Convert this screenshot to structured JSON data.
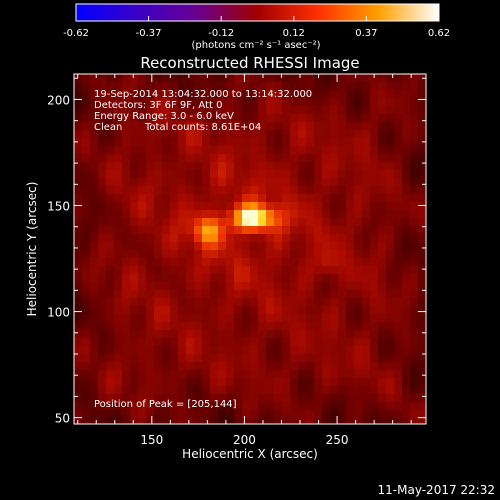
{
  "colorbar": {
    "ticks": [
      "-0.62",
      "-0.37",
      "-0.12",
      "0.12",
      "0.37",
      "0.62"
    ],
    "unit": "(photons cm⁻² s⁻¹ asec⁻²)",
    "range": [
      -0.62,
      0.62
    ],
    "colormap": [
      "#0000ff",
      "#3a00c8",
      "#6a0090",
      "#a00000",
      "#ff3000",
      "#ffa000",
      "#ffffff"
    ]
  },
  "chart_data": {
    "type": "heatmap",
    "title": "Reconstructed RHESSI Image",
    "xlabel": "Heliocentric X (arcsec)",
    "ylabel": "Heliocentric Y (arcsec)",
    "xlim": [
      108,
      298
    ],
    "ylim": [
      47,
      212
    ],
    "xticks": [
      "150",
      "200",
      "250"
    ],
    "yticks": [
      "200",
      "150",
      "100",
      "50"
    ],
    "xtick_values": [
      150,
      200,
      250
    ],
    "ytick_values": [
      200,
      150,
      100,
      50
    ],
    "value_range": [
      -0.62,
      0.62
    ],
    "sources": [
      {
        "x": 205,
        "y": 144,
        "peak": 0.62
      },
      {
        "x": 180,
        "y": 138,
        "peak": 0.45
      },
      {
        "x": 245,
        "y": 122,
        "peak": 0.22
      }
    ],
    "annotations": {
      "date": "19-Sep-2014 13:04:32.000 to 13:14:32.000",
      "detectors": "Detectors: 3F 6F 9F, Att 0",
      "energy": "Energy Range: 3.0 - 6.0 keV",
      "clean": "Clean",
      "counts": "Total counts: 8.61E+04",
      "peak": "Position of Peak = [205,144]"
    }
  },
  "footer": {
    "timestamp": "11-May-2017 22:32"
  }
}
